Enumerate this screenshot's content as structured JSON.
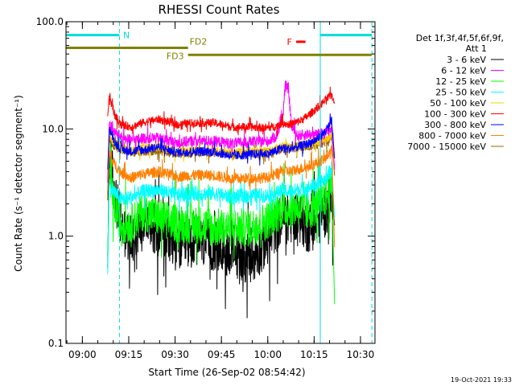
{
  "chart_data": {
    "type": "line",
    "title": "RHESSI Count Rates",
    "xlabel": "Start Time (26-Sep-02 08:54:42)",
    "ylabel": "Count Rate (s⁻¹ detector segment⁻¹)",
    "ylog": true,
    "ylim": [
      0.1,
      100
    ],
    "xlim_minutes_after_start": [
      0,
      100
    ],
    "x_ticks": [
      "09:00",
      "09:15",
      "09:30",
      "09:45",
      "10:00",
      "10:15",
      "10:30"
    ],
    "x_ticks_minutes_after_start": [
      5.3,
      20.3,
      35.3,
      50.3,
      65.3,
      80.3,
      95.3
    ],
    "y_ticks": [
      "0.1",
      "1.0",
      "10.0",
      "100.0"
    ],
    "y_tick_values": [
      0.1,
      1,
      10,
      100
    ],
    "grid": false,
    "legend_position": "right",
    "legend_header": [
      "Det 1f,3f,4f,5f,6f,9f,",
      "Att 1"
    ],
    "series": [
      {
        "name": "3 - 6 keV",
        "color": "#000000",
        "x": [
          13.5,
          14,
          15,
          16,
          18,
          21,
          25,
          30,
          36,
          42,
          48,
          54,
          60,
          65,
          68,
          70,
          72,
          75,
          78,
          81,
          84,
          86,
          87
        ],
        "y": [
          0.5,
          6.2,
          4.0,
          2.3,
          1.2,
          0.9,
          1.5,
          1.1,
          0.8,
          0.9,
          0.8,
          0.7,
          0.6,
          0.9,
          1.2,
          1.5,
          1.4,
          1.6,
          1.2,
          1.3,
          1.7,
          2.5,
          1.2
        ]
      },
      {
        "name": "6 - 12 keV",
        "color": "#ff00ff",
        "x": [
          13.5,
          14,
          15,
          16,
          18,
          21,
          25,
          30,
          36,
          42,
          48,
          54,
          60,
          65,
          68,
          70,
          71,
          72,
          73,
          75,
          78,
          81,
          84,
          86,
          87
        ],
        "y": [
          3.2,
          11.5,
          9.8,
          9.2,
          8.4,
          7.8,
          8.2,
          8.2,
          7.4,
          7.8,
          7.7,
          7.3,
          7.6,
          7.6,
          8.5,
          12.0,
          25.0,
          24.0,
          10.5,
          8.6,
          8.9,
          8.8,
          9.2,
          10.2,
          4.0
        ]
      },
      {
        "name": "12 - 25 keV",
        "color": "#00ff00",
        "x": [
          13.5,
          14,
          15,
          16,
          18,
          21,
          25,
          30,
          36,
          42,
          48,
          54,
          60,
          65,
          68,
          70,
          72,
          75,
          78,
          81,
          84,
          86,
          87
        ],
        "y": [
          0.7,
          3.2,
          2.4,
          1.8,
          1.3,
          1.3,
          1.7,
          1.5,
          1.3,
          1.3,
          1.2,
          1.2,
          1.2,
          1.4,
          1.6,
          1.8,
          1.8,
          1.9,
          1.7,
          1.9,
          2.3,
          3.0,
          0.2
        ]
      },
      {
        "name": "25 - 50 keV",
        "color": "#00ffff",
        "x": [
          13.5,
          14,
          15,
          16,
          18,
          21,
          25,
          30,
          36,
          42,
          48,
          54,
          60,
          65,
          68,
          70,
          72,
          75,
          78,
          81,
          84,
          86,
          87
        ],
        "y": [
          0.45,
          3.0,
          2.7,
          2.5,
          2.2,
          2.3,
          2.6,
          2.7,
          2.4,
          2.5,
          2.5,
          2.3,
          2.4,
          2.4,
          2.5,
          2.7,
          2.6,
          2.7,
          2.8,
          3.0,
          3.4,
          4.3,
          1.4
        ]
      },
      {
        "name": "50 - 100 keV",
        "color": "#ffcc00",
        "x": [
          13.5,
          14,
          15,
          16,
          18,
          21,
          25,
          30,
          36,
          42,
          48,
          54,
          60,
          65,
          68,
          70,
          72,
          75,
          78,
          81,
          84,
          86,
          87
        ],
        "y": [
          3.2,
          9.0,
          7.6,
          7.2,
          6.7,
          6.2,
          6.6,
          6.7,
          6.1,
          6.3,
          6.3,
          6.0,
          6.2,
          6.2,
          6.5,
          7.0,
          6.8,
          7.0,
          7.1,
          7.5,
          8.0,
          8.8,
          3.8
        ]
      },
      {
        "name": "100 - 300 keV",
        "color": "#ff0000",
        "x": [
          13.5,
          14,
          15,
          16,
          18,
          21,
          25,
          30,
          36,
          42,
          48,
          54,
          60,
          65,
          68,
          70,
          72,
          75,
          78,
          81,
          84,
          86,
          87
        ],
        "y": [
          13.0,
          21.0,
          16.0,
          13.0,
          11.0,
          10.4,
          11.5,
          12.3,
          11.0,
          11.4,
          11.4,
          10.4,
          10.4,
          10.2,
          10.6,
          11.4,
          11.0,
          11.6,
          13.0,
          15.5,
          18.5,
          21.0,
          17.0
        ]
      },
      {
        "name": "300 - 800 keV",
        "color": "#0000ff",
        "x": [
          13.5,
          14,
          15,
          16,
          18,
          21,
          25,
          30,
          36,
          42,
          48,
          54,
          60,
          65,
          68,
          70,
          72,
          75,
          78,
          81,
          84,
          86,
          87
        ],
        "y": [
          4.2,
          10.0,
          8.6,
          7.4,
          6.4,
          6.2,
          6.4,
          6.8,
          6.0,
          6.2,
          6.1,
          5.6,
          5.8,
          5.9,
          6.2,
          6.7,
          6.5,
          6.8,
          7.2,
          7.9,
          9.5,
          11.8,
          5.0
        ]
      },
      {
        "name": "800 - 7000 keV",
        "color": "#ff8000",
        "x": [
          13.5,
          14,
          15,
          16,
          18,
          21,
          25,
          30,
          36,
          42,
          48,
          54,
          60,
          65,
          68,
          70,
          72,
          75,
          78,
          81,
          84,
          86,
          87
        ],
        "y": [
          2.5,
          6.0,
          5.0,
          4.6,
          3.9,
          3.5,
          3.8,
          4.0,
          3.6,
          3.7,
          3.7,
          3.4,
          3.5,
          3.5,
          3.8,
          4.1,
          4.0,
          4.2,
          4.4,
          4.8,
          5.3,
          6.5,
          0.7
        ]
      },
      {
        "name": "7000 - 15000 keV",
        "color": "#996600",
        "x": [
          13.5,
          14,
          15,
          16,
          18,
          21,
          25,
          30,
          36,
          42,
          48,
          54,
          60,
          65,
          68,
          70,
          72,
          75,
          78,
          81,
          84,
          86,
          87
        ],
        "y": [
          2.2,
          8.0,
          7.0,
          6.8,
          6.4,
          6.0,
          6.2,
          6.3,
          5.9,
          6.0,
          6.0,
          5.8,
          5.9,
          6.0,
          6.2,
          6.6,
          6.5,
          6.7,
          6.8,
          7.1,
          7.6,
          8.4,
          3.5
        ]
      }
    ],
    "vertical_lines": [
      {
        "x": 0,
        "color": "#00dddd",
        "style": "solid"
      },
      {
        "x": 17.3,
        "color": "#00dddd",
        "style": "dashed"
      },
      {
        "x": 82.3,
        "color": "#00dddd",
        "style": "solid"
      },
      {
        "x": 99,
        "color": "#00dddd",
        "style": "dashed"
      }
    ],
    "flag_bars": [
      {
        "label": "N",
        "color": "#00dddd",
        "y": 75,
        "segments": [
          [
            0,
            17.3
          ],
          [
            82.3,
            99
          ]
        ],
        "label_x": 18.5
      },
      {
        "label": "FD2",
        "color": "#808000",
        "y": 57,
        "segments": [
          [
            0,
            39.5
          ]
        ],
        "label_x": 40
      },
      {
        "label": "FD3",
        "color": "#808000",
        "y": 49,
        "segments": [
          [
            39.5,
            99
          ]
        ],
        "label_x": 32.5
      },
      {
        "label": "F",
        "color": "#ff0000",
        "y": 65,
        "segments": [
          [
            74.5,
            77.5
          ]
        ],
        "label_x": 71.5
      }
    ],
    "footer_date": "19-Oct-2021 19:33"
  }
}
